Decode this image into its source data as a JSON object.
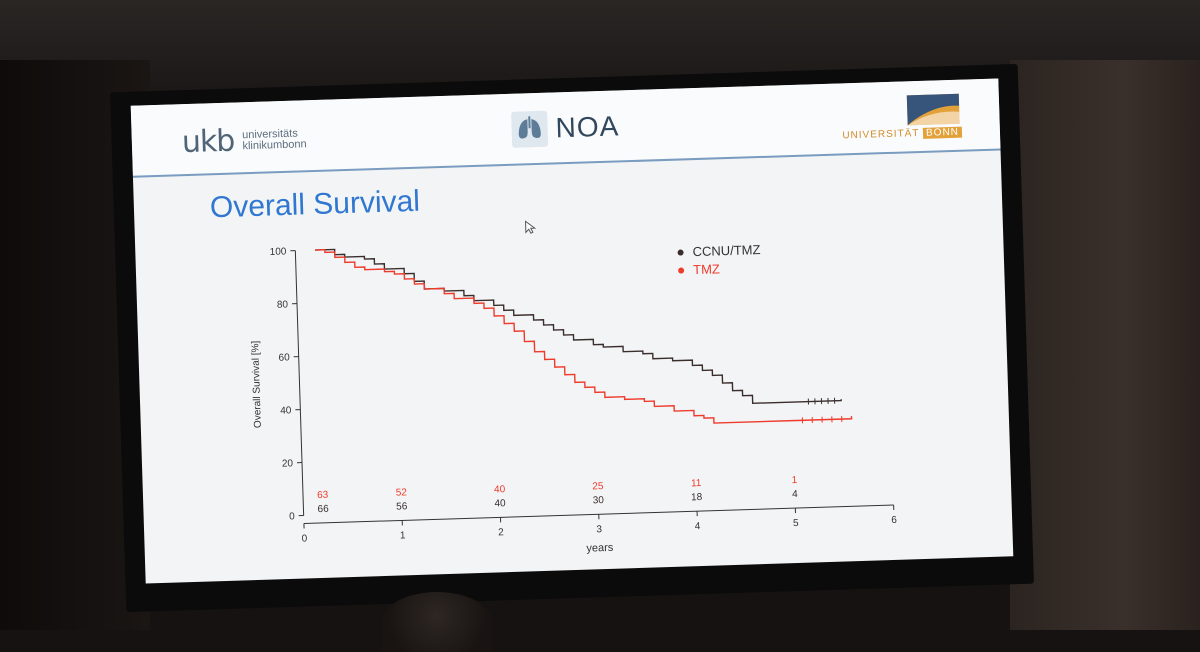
{
  "slide": {
    "title": "Overall Survival",
    "ukb_mark": "ukb",
    "ukb_line1": "universitäts",
    "ukb_line2": "klinikumbonn",
    "noa_label": "NOA",
    "bonn_prefix": "UNIVERSITÄT ",
    "bonn_suffix": "BONN"
  },
  "colors": {
    "series_ccnu": "#3a2e2d",
    "series_tmz": "#ee3b2b",
    "title_blue": "#2f77d0",
    "axis": "#333333",
    "bonn_orange": "#e3a13a",
    "bonn_blue": "#37557a"
  },
  "chart_data": {
    "type": "line",
    "subtype": "kaplan-meier step",
    "title": "",
    "xlabel": "years",
    "ylabel": "Overall Survival [%]",
    "xlim": [
      0,
      6
    ],
    "ylim": [
      0,
      100
    ],
    "x_ticks": [
      0,
      1,
      2,
      3,
      4,
      5,
      6
    ],
    "y_ticks": [
      0,
      20,
      40,
      60,
      80,
      100
    ],
    "legend_position": "top-right",
    "series": [
      {
        "name": "CCNU/TMZ",
        "color": "#3a2e2d",
        "points": [
          [
            0.2,
            100
          ],
          [
            0.4,
            98
          ],
          [
            0.5,
            97
          ],
          [
            0.7,
            96
          ],
          [
            0.8,
            94
          ],
          [
            0.9,
            92
          ],
          [
            1.1,
            90
          ],
          [
            1.2,
            87
          ],
          [
            1.3,
            84
          ],
          [
            1.5,
            83
          ],
          [
            1.7,
            81
          ],
          [
            1.8,
            79
          ],
          [
            2.0,
            77
          ],
          [
            2.1,
            75
          ],
          [
            2.2,
            73
          ],
          [
            2.4,
            71
          ],
          [
            2.5,
            69
          ],
          [
            2.6,
            67
          ],
          [
            2.7,
            65
          ],
          [
            2.8,
            63
          ],
          [
            3.0,
            61
          ],
          [
            3.1,
            60
          ],
          [
            3.3,
            58
          ],
          [
            3.5,
            57
          ],
          [
            3.6,
            55
          ],
          [
            3.8,
            54
          ],
          [
            4.0,
            52
          ],
          [
            4.1,
            50
          ],
          [
            4.2,
            48
          ],
          [
            4.3,
            45
          ],
          [
            4.4,
            42
          ],
          [
            4.5,
            40
          ],
          [
            4.6,
            37
          ],
          [
            5.1,
            37
          ],
          [
            5.5,
            37.5
          ]
        ]
      },
      {
        "name": "TMZ",
        "color": "#ee3b2b",
        "points": [
          [
            0.2,
            100
          ],
          [
            0.3,
            99
          ],
          [
            0.4,
            97
          ],
          [
            0.5,
            95
          ],
          [
            0.6,
            93
          ],
          [
            0.7,
            92
          ],
          [
            0.9,
            91
          ],
          [
            1.0,
            90
          ],
          [
            1.1,
            88
          ],
          [
            1.2,
            86
          ],
          [
            1.3,
            84
          ],
          [
            1.5,
            82
          ],
          [
            1.6,
            80
          ],
          [
            1.8,
            78
          ],
          [
            1.9,
            76
          ],
          [
            2.0,
            73
          ],
          [
            2.1,
            70
          ],
          [
            2.2,
            67
          ],
          [
            2.3,
            63
          ],
          [
            2.4,
            59
          ],
          [
            2.5,
            56
          ],
          [
            2.6,
            53
          ],
          [
            2.7,
            50
          ],
          [
            2.8,
            47
          ],
          [
            2.9,
            45
          ],
          [
            3.0,
            43
          ],
          [
            3.1,
            41
          ],
          [
            3.3,
            40
          ],
          [
            3.5,
            39
          ],
          [
            3.6,
            37
          ],
          [
            3.8,
            35
          ],
          [
            4.0,
            33
          ],
          [
            4.1,
            32
          ],
          [
            4.2,
            30
          ],
          [
            5.0,
            30
          ],
          [
            5.6,
            31
          ]
        ]
      }
    ],
    "numbers_at_risk": {
      "x": [
        0.2,
        1,
        2,
        3,
        4,
        5
      ],
      "TMZ": [
        "63",
        "52",
        "40",
        "25",
        "11",
        "1"
      ],
      "CCNU/TMZ": [
        "66",
        "56",
        "40",
        "30",
        "18",
        "4"
      ]
    }
  }
}
